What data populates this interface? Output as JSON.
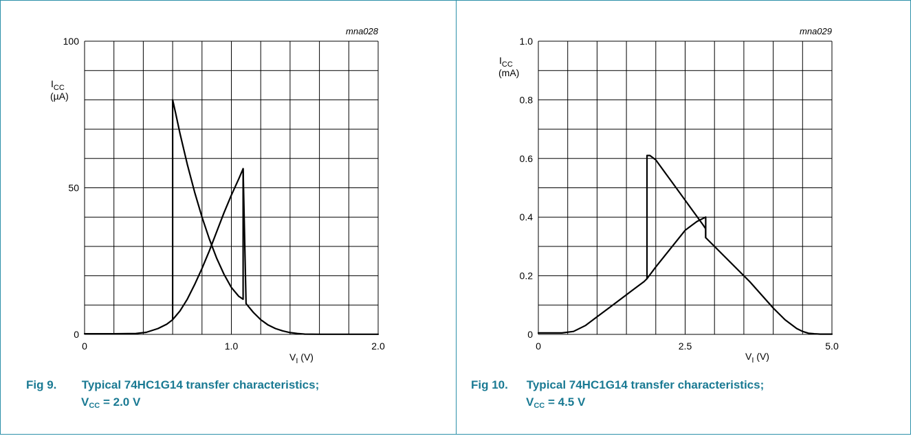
{
  "figures": [
    {
      "code": "mna028",
      "caption_number": "Fig 9.",
      "caption_title": "Typical 74HC1G14 transfer characteristics;",
      "caption_condition": {
        "symbol": "V",
        "subscript": "CC",
        "value": "= 2.0 V"
      }
    },
    {
      "code": "mna029",
      "caption_number": "Fig 10.",
      "caption_title": "Typical 74HC1G14 transfer characteristics;",
      "caption_condition": {
        "symbol": "V",
        "subscript": "CC",
        "value": "= 4.5 V"
      }
    }
  ],
  "chart_data": [
    {
      "type": "line",
      "xlabel": {
        "symbol": "V",
        "subscript": "I",
        "unit": "(V)"
      },
      "ylabel": {
        "symbol": "I",
        "subscript": "CC",
        "unit": "(µA)"
      },
      "xlim": [
        0,
        2.0
      ],
      "ylim": [
        0,
        100
      ],
      "xtick_labels": [
        {
          "value": 0,
          "label": "0"
        },
        {
          "value": 1.0,
          "label": "1.0"
        },
        {
          "value": 2.0,
          "label": "2.0"
        }
      ],
      "ytick_labels": [
        {
          "value": 0,
          "label": "0"
        },
        {
          "value": 50,
          "label": "50"
        },
        {
          "value": 100,
          "label": "100"
        }
      ],
      "grid": {
        "x_step": 0.2,
        "y_step": 10,
        "on": true
      },
      "series": [
        {
          "x": [
            0,
            0.2,
            0.35,
            0.42,
            0.5,
            0.56,
            0.6,
            0.6,
            0.62,
            0.65,
            0.7,
            0.75,
            0.8,
            0.85,
            0.9,
            0.95,
            1.0,
            1.05,
            1.08,
            1.08
          ],
          "y": [
            0.2,
            0.2,
            0.3,
            0.7,
            2.0,
            3.5,
            5.0,
            80,
            75.5,
            68.5,
            58,
            48.5,
            40,
            32.5,
            26,
            20.5,
            16,
            13,
            12,
            56.5
          ]
        },
        {
          "x": [
            0.6,
            0.65,
            0.7,
            0.75,
            0.8,
            0.85,
            0.9,
            0.95,
            1.0,
            1.05,
            1.08,
            1.1,
            1.15,
            1.2,
            1.25,
            1.3,
            1.35,
            1.4,
            1.45,
            1.5,
            1.6,
            1.8,
            2.0
          ],
          "y": [
            5.0,
            8,
            12,
            17,
            22.5,
            28.5,
            35,
            41.5,
            47.5,
            53,
            56.5,
            10.5,
            7.5,
            5.0,
            3.2,
            2.0,
            1.2,
            0.6,
            0.3,
            0.1,
            0.05,
            0.05,
            0.05
          ]
        }
      ]
    },
    {
      "type": "line",
      "xlabel": {
        "symbol": "V",
        "subscript": "I",
        "unit": "(V)"
      },
      "ylabel": {
        "symbol": "I",
        "subscript": "CC",
        "unit": "(mA)"
      },
      "xlim": [
        0,
        5.0
      ],
      "ylim": [
        0,
        1.0
      ],
      "xtick_labels": [
        {
          "value": 0,
          "label": "0"
        },
        {
          "value": 2.5,
          "label": "2.5"
        },
        {
          "value": 5.0,
          "label": "5.0"
        }
      ],
      "ytick_labels": [
        {
          "value": 0,
          "label": "0"
        },
        {
          "value": 0.2,
          "label": "0.2"
        },
        {
          "value": 0.4,
          "label": "0.4"
        },
        {
          "value": 0.6,
          "label": "0.6"
        },
        {
          "value": 0.8,
          "label": "0.8"
        },
        {
          "value": 1.0,
          "label": "1.0"
        }
      ],
      "grid": {
        "x_step": 0.5,
        "y_step": 0.1,
        "on": true
      },
      "series": [
        {
          "x": [
            0,
            0.4,
            0.6,
            0.8,
            1.0,
            1.2,
            1.4,
            1.6,
            1.8,
            1.85,
            1.85,
            1.9,
            2.0,
            2.2,
            2.4,
            2.6,
            2.8,
            2.85,
            2.85
          ],
          "y": [
            0.005,
            0.005,
            0.01,
            0.03,
            0.06,
            0.09,
            0.12,
            0.15,
            0.18,
            0.19,
            0.61,
            0.61,
            0.595,
            0.54,
            0.485,
            0.43,
            0.375,
            0.36,
            0.33
          ]
        },
        {
          "x": [
            1.85,
            2.0,
            2.2,
            2.4,
            2.5,
            2.6,
            2.7,
            2.85,
            2.85,
            3.0,
            3.2,
            3.4,
            3.6,
            3.8,
            4.0,
            4.2,
            4.4,
            4.5,
            4.6,
            4.7,
            4.8,
            4.9,
            5.0
          ],
          "y": [
            0.19,
            0.23,
            0.28,
            0.33,
            0.355,
            0.37,
            0.385,
            0.4,
            0.33,
            0.3,
            0.26,
            0.22,
            0.18,
            0.135,
            0.09,
            0.05,
            0.02,
            0.01,
            0.004,
            0.002,
            0.001,
            0.001,
            0.001
          ]
        }
      ]
    }
  ]
}
